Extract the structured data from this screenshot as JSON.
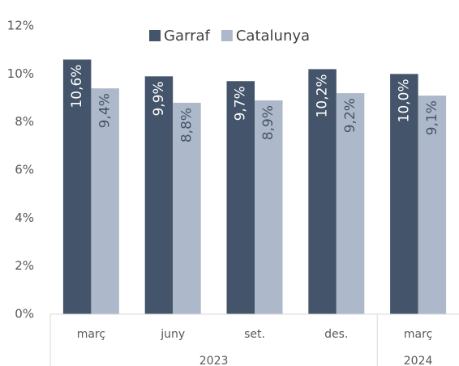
{
  "chart_data": {
    "type": "bar",
    "categories": [
      "març",
      "juny",
      "set.",
      "des.",
      "març"
    ],
    "groups": [
      {
        "label": "2023",
        "size": 4
      },
      {
        "label": "2024",
        "size": 1
      }
    ],
    "series": [
      {
        "name": "Garraf",
        "color": "#44546a",
        "values": [
          10.6,
          9.9,
          9.7,
          10.2,
          10.0
        ],
        "value_labels": [
          "10,6%",
          "9,9%",
          "9,7%",
          "10,2%",
          "10,0%"
        ]
      },
      {
        "name": "Catalunya",
        "color": "#adb9ca",
        "values": [
          9.4,
          8.8,
          8.9,
          9.2,
          9.1
        ],
        "value_labels": [
          "9,4%",
          "8,8%",
          "8,9%",
          "9,2%",
          "9,1%"
        ]
      }
    ],
    "ylim": [
      0,
      12
    ],
    "yticks": [
      {
        "value": 0,
        "label": "0%"
      },
      {
        "value": 2,
        "label": "2%"
      },
      {
        "value": 4,
        "label": "4%"
      },
      {
        "value": 6,
        "label": "6%"
      },
      {
        "value": 8,
        "label": "8%"
      },
      {
        "value": 10,
        "label": "10%"
      },
      {
        "value": 12,
        "label": "12%"
      }
    ],
    "grid": false,
    "legend": "top"
  }
}
